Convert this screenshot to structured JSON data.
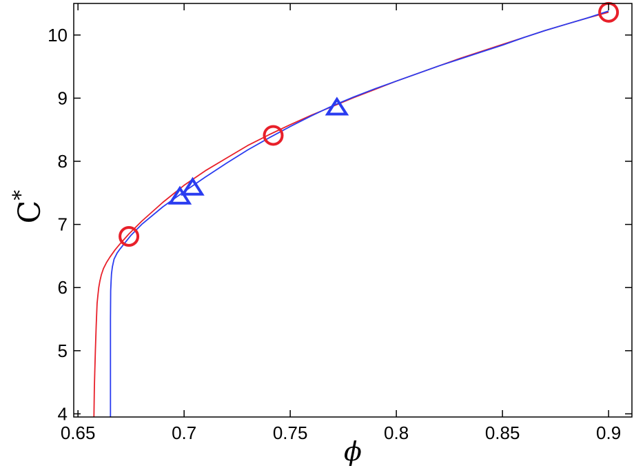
{
  "chart_data": {
    "type": "line",
    "xlabel": "ϕ",
    "ylabel": "C",
    "ylabel_superscript": "*",
    "xlim": [
      0.648,
      0.911
    ],
    "ylim": [
      3.95,
      10.5
    ],
    "xticks": [
      0.65,
      0.7,
      0.75,
      0.8,
      0.85,
      0.9
    ],
    "xtick_labels": [
      "0.65",
      "0.7",
      "0.75",
      "0.8",
      "0.85",
      "0.9"
    ],
    "yticks": [
      4,
      5,
      6,
      7,
      8,
      9,
      10
    ],
    "ytick_labels": [
      "4",
      "5",
      "6",
      "7",
      "8",
      "9",
      "10"
    ],
    "grid": false,
    "legend": "none",
    "series": [
      {
        "color": "#e8202a",
        "x": [
          0.6575,
          0.6577,
          0.6579,
          0.6582,
          0.6586,
          0.659,
          0.6594,
          0.6598,
          0.6603,
          0.661,
          0.662,
          0.6635,
          0.665,
          0.6675,
          0.67,
          0.674,
          0.68,
          0.69,
          0.7,
          0.71,
          0.72,
          0.73,
          0.74,
          0.75,
          0.76,
          0.77,
          0.78,
          0.79,
          0.8,
          0.81,
          0.82,
          0.83,
          0.84,
          0.85,
          0.86,
          0.87,
          0.88,
          0.89,
          0.9
        ],
        "y": [
          3.95,
          4.4,
          4.65,
          5.0,
          5.4,
          5.75,
          5.88,
          6.0,
          6.1,
          6.2,
          6.3,
          6.4,
          6.48,
          6.6,
          6.7,
          6.85,
          7.05,
          7.35,
          7.62,
          7.85,
          8.05,
          8.25,
          8.42,
          8.58,
          8.73,
          8.87,
          9.01,
          9.14,
          9.27,
          9.39,
          9.51,
          9.63,
          9.74,
          9.85,
          9.96,
          10.07,
          10.17,
          10.27,
          10.36
        ]
      },
      {
        "color": "#2a3cf0",
        "x": [
          0.6653,
          0.6653,
          0.6654,
          0.6656,
          0.6658,
          0.6662,
          0.667,
          0.6685,
          0.67,
          0.675,
          0.68,
          0.69,
          0.7,
          0.71,
          0.72,
          0.73,
          0.74,
          0.75,
          0.76,
          0.77,
          0.78,
          0.79,
          0.8,
          0.81,
          0.82,
          0.83,
          0.84,
          0.85,
          0.86,
          0.87,
          0.88,
          0.89,
          0.9
        ],
        "y": [
          3.95,
          5.5,
          5.95,
          6.1,
          6.22,
          6.33,
          6.45,
          6.55,
          6.62,
          6.83,
          7.0,
          7.28,
          7.52,
          7.75,
          7.97,
          8.18,
          8.37,
          8.55,
          8.72,
          8.88,
          9.02,
          9.15,
          9.27,
          9.39,
          9.51,
          9.62,
          9.73,
          9.84,
          9.96,
          10.07,
          10.17,
          10.27,
          10.38
        ]
      }
    ],
    "markers": [
      {
        "shape": "circle",
        "color": "#e8202a",
        "x": 0.674,
        "y": 6.81
      },
      {
        "shape": "circle",
        "color": "#e8202a",
        "x": 0.742,
        "y": 8.41
      },
      {
        "shape": "circle",
        "color": "#e8202a",
        "x": 0.9,
        "y": 10.36
      },
      {
        "shape": "triangle",
        "color": "#2a3cf0",
        "x": 0.698,
        "y": 7.43
      },
      {
        "shape": "triangle",
        "color": "#2a3cf0",
        "x": 0.704,
        "y": 7.57
      },
      {
        "shape": "triangle",
        "color": "#2a3cf0",
        "x": 0.772,
        "y": 8.84
      }
    ]
  }
}
